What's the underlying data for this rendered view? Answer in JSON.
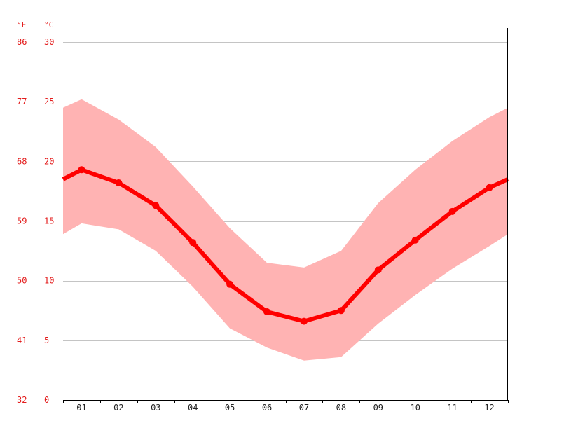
{
  "chart_data": {
    "type": "area",
    "unit_labels": {
      "fahrenheit": "°F",
      "celsius": "°C"
    },
    "celsius_ticks": [
      "0",
      "5",
      "10",
      "15",
      "20",
      "25",
      "30"
    ],
    "fahrenheit_ticks": [
      "32",
      "41",
      "50",
      "59",
      "68",
      "77",
      "86"
    ],
    "ylim": [
      0,
      30
    ],
    "categories": [
      "01",
      "02",
      "03",
      "04",
      "05",
      "06",
      "07",
      "08",
      "09",
      "10",
      "11",
      "12"
    ],
    "x": [
      1,
      2,
      3,
      4,
      5,
      6,
      7,
      8,
      9,
      10,
      11,
      12
    ],
    "series": [
      {
        "role": "mean",
        "values": [
          19.3,
          18.2,
          16.3,
          13.2,
          9.7,
          7.4,
          6.6,
          7.5,
          10.9,
          13.4,
          15.8,
          17.8
        ]
      },
      {
        "role": "max",
        "values": [
          25.2,
          23.5,
          21.2,
          17.9,
          14.4,
          11.5,
          11.1,
          12.5,
          16.5,
          19.3,
          21.7,
          23.7
        ]
      },
      {
        "role": "min",
        "values": [
          14.8,
          14.3,
          12.5,
          9.5,
          6.0,
          4.4,
          3.3,
          3.6,
          6.4,
          8.8,
          11.0,
          12.9
        ]
      }
    ],
    "edge_values": {
      "start": {
        "mean": 18.5,
        "max": 24.5,
        "min": 13.9
      },
      "end": {
        "mean": 18.5,
        "max": 24.5,
        "min": 13.9
      }
    },
    "grid": true,
    "colors": {
      "line": "#ff0000",
      "band": "#ffb3b3",
      "tick_text": "#e31b1b",
      "grid": "#c4c4c4"
    }
  }
}
